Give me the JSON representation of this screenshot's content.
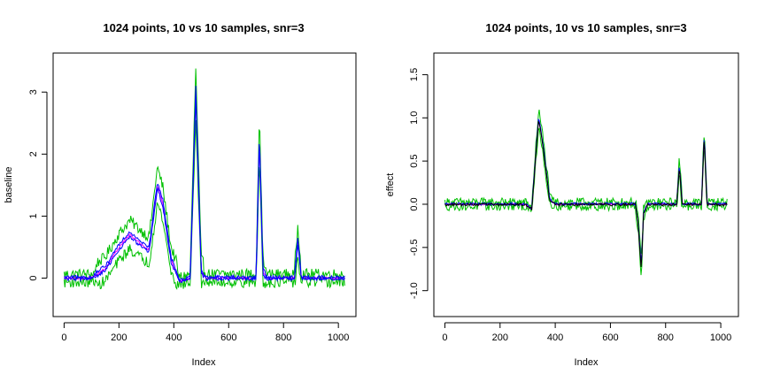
{
  "chart_data": [
    {
      "type": "line",
      "title": "1024 points, 10 vs 10 samples, snr=3",
      "xlabel": "Index",
      "ylabel": "baseline",
      "xlim": [
        -40,
        1064
      ],
      "ylim": [
        -0.62,
        3.63
      ],
      "xticks": [
        0,
        200,
        400,
        600,
        800,
        1000
      ],
      "yticks": [
        0,
        1,
        2,
        3
      ],
      "grid": false,
      "series_colors": [
        "#00c000",
        "#ff00ff",
        "#0000ff"
      ],
      "series": [
        {
          "values_from": "profile",
          "offset": 0.18,
          "noise": 0.09,
          "color": "#00c000"
        },
        {
          "values_from": "profile",
          "offset": -0.18,
          "noise": 0.09,
          "color": "#00c000"
        },
        {
          "values_from": "profile",
          "offset": 0.0,
          "noise": 0.02,
          "color": "#ff00ff"
        },
        {
          "values_from": "profile",
          "offset": 0.04,
          "noise": 0.03,
          "color": "#0000ff"
        },
        {
          "values_from": "profile",
          "offset": -0.03,
          "noise": 0.03,
          "color": "#0000ff"
        }
      ],
      "profile": [
        [
          0,
          0
        ],
        [
          100,
          0
        ],
        [
          150,
          0.15
        ],
        [
          200,
          0.5
        ],
        [
          240,
          0.7
        ],
        [
          280,
          0.55
        ],
        [
          310,
          0.45
        ],
        [
          340,
          1.5
        ],
        [
          360,
          1.2
        ],
        [
          390,
          0.3
        ],
        [
          420,
          -0.05
        ],
        [
          460,
          0
        ],
        [
          480,
          3.0
        ],
        [
          500,
          0.1
        ],
        [
          520,
          0
        ],
        [
          700,
          0
        ],
        [
          712,
          2.3
        ],
        [
          725,
          0.1
        ],
        [
          740,
          0
        ],
        [
          840,
          0
        ],
        [
          852,
          0.6
        ],
        [
          865,
          0
        ],
        [
          1024,
          0
        ]
      ]
    },
    {
      "type": "line",
      "title": "1024 points, 10 vs 10 samples, snr=3",
      "xlabel": "Index",
      "ylabel": "effect",
      "xlim": [
        -40,
        1064
      ],
      "ylim": [
        -1.3,
        1.75
      ],
      "xticks": [
        0,
        200,
        400,
        600,
        800,
        1000
      ],
      "yticks": [
        -1.0,
        -0.5,
        0.0,
        0.5,
        1.0,
        1.5
      ],
      "ytick_labels": [
        "-1.0",
        "-0.5",
        "0.0",
        "0.5",
        "1.0",
        "1.5"
      ],
      "grid": false,
      "series_colors": [
        "#00c000",
        "#ff00ff",
        "#0000ff",
        "#000000"
      ],
      "series": [
        {
          "values_from": "profile",
          "offset": 0.07,
          "noise": 0.05,
          "color": "#00c000"
        },
        {
          "values_from": "profile",
          "offset": -0.07,
          "noise": 0.05,
          "color": "#00c000"
        },
        {
          "values_from": "profile",
          "offset": 0.0,
          "noise": 0.01,
          "color": "#ff00ff"
        },
        {
          "values_from": "profile",
          "offset": 0.01,
          "noise": 0.015,
          "color": "#0000ff"
        },
        {
          "values_from": "profile",
          "offset": -0.01,
          "noise": 0.015,
          "color": "#000000"
        }
      ],
      "profile": [
        [
          0,
          0
        ],
        [
          290,
          0
        ],
        [
          315,
          -0.05
        ],
        [
          330,
          0.6
        ],
        [
          340,
          1.0
        ],
        [
          355,
          0.7
        ],
        [
          380,
          0.05
        ],
        [
          400,
          0
        ],
        [
          690,
          0
        ],
        [
          700,
          -0.2
        ],
        [
          712,
          -0.75
        ],
        [
          720,
          -0.1
        ],
        [
          735,
          0
        ],
        [
          840,
          0
        ],
        [
          850,
          0.45
        ],
        [
          860,
          0
        ],
        [
          930,
          0
        ],
        [
          940,
          0.8
        ],
        [
          950,
          0
        ],
        [
          1024,
          0
        ]
      ]
    }
  ]
}
